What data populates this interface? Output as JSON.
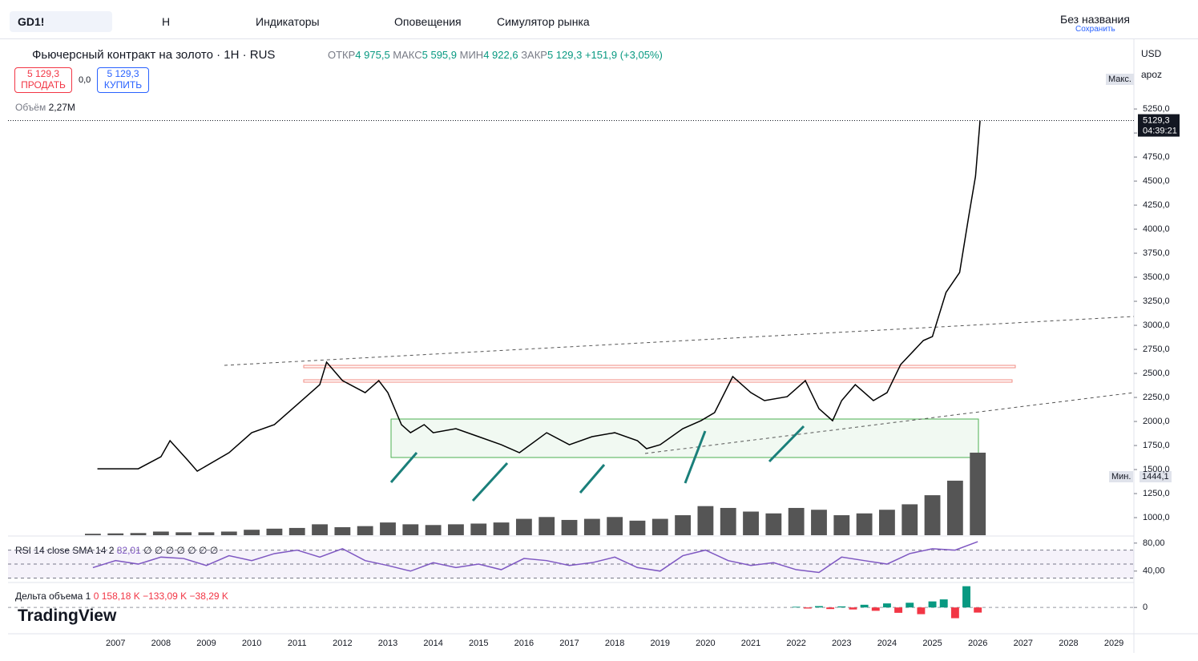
{
  "toolbar": {
    "symbol": "GD1!",
    "interval": "H",
    "indicators": "Индикаторы",
    "alerts": "Оповещения",
    "replay": "Симулятор рынка",
    "layout_name": "Без названия",
    "save_status": "Сохранить"
  },
  "legend": {
    "title": "Фьючерсный контракт на золото · 1H · RUS",
    "open_label": "ОТКР",
    "open": "4 975,5",
    "high_label": "МАКС",
    "high": "5 595,9",
    "low_label": "МИН",
    "low": "4 922,6",
    "close_label": "ЗАКР",
    "close": "5 129,3",
    "change": "+151,9 (+3,05%)",
    "sell_price": "5 129,3",
    "sell": "ПРОДАТЬ",
    "spread": "0,0",
    "buy_price": "5 129,3",
    "buy": "КУПИТЬ",
    "volume_label": "Объём",
    "volume": "2,27M"
  },
  "price_scale": {
    "currency": "USD",
    "unit": "apoz",
    "max_label": "Макс.",
    "min_label": "Мин.",
    "min_value": "1444,1",
    "countdown": "04:39:21"
  },
  "indicators": {
    "rsi_title": "RSI 14 close SMA 14 2",
    "rsi_value": "82,01",
    "rsi_na": "∅ ∅ ∅ ∅ ∅ ∅ ∅",
    "delta_title": "Дельта объема 1",
    "delta_values": [
      "0",
      "158,18 K",
      "−133,09 K",
      "−38,29 K"
    ]
  },
  "branding": "TradingView",
  "chart_data": [
    {
      "type": "line",
      "color": "#000000",
      "x": [
        2006.6,
        2007.5,
        2008.0,
        2008.2,
        2008.6,
        2008.8,
        2009.5,
        2010.0,
        2010.5,
        2011.0,
        2011.5,
        2011.65,
        2012.0,
        2012.5,
        2012.8,
        2013.0,
        2013.3,
        2013.5,
        2013.8,
        2014.0,
        2014.5,
        2015.0,
        2015.5,
        2015.9,
        2016.5,
        2017.0,
        2017.5,
        2018.0,
        2018.5,
        2018.7,
        2019.0,
        2019.5,
        2019.9,
        2020.2,
        2020.6,
        2021.0,
        2021.3,
        2021.8,
        2022.2,
        2022.5,
        2022.8,
        2023.0,
        2023.3,
        2023.7,
        2024.0,
        2024.3,
        2024.8,
        2025.0,
        2025.3,
        2025.6,
        2025.8,
        2025.95,
        2026.05
      ],
      "values": [
        1508,
        1508,
        1633,
        1800,
        1592,
        1483,
        1675,
        1883,
        1967,
        2175,
        2383,
        2617,
        2425,
        2300,
        2425,
        2300,
        1967,
        1883,
        1967,
        1883,
        1925,
        1842,
        1758,
        1675,
        1883,
        1758,
        1842,
        1883,
        1800,
        1717,
        1758,
        1925,
        2008,
        2092,
        2467,
        2300,
        2217,
        2258,
        2425,
        2133,
        2008,
        2217,
        2383,
        2217,
        2300,
        2592,
        2842,
        2883,
        3342,
        3550,
        4133,
        4550,
        5129.3
      ],
      "last_price": {
        "value": 5129.3,
        "label": "5129,3"
      },
      "xlim": [
        2004.63,
        2029.44
      ],
      "xticks": [
        2007,
        2008,
        2009,
        2010,
        2011,
        2012,
        2013,
        2014,
        2015,
        2016,
        2017,
        2018,
        2019,
        2020,
        2021,
        2022,
        2023,
        2024,
        2025,
        2026,
        2027,
        2028,
        2029
      ],
      "ylim": [
        817,
        5967
      ],
      "yticks": [
        {
          "value": 1000,
          "label": "1000,0"
        },
        {
          "value": 1250,
          "label": "1250,0"
        },
        {
          "value": 1500,
          "label": "1500,0"
        },
        {
          "value": 1750,
          "label": "1750,0"
        },
        {
          "value": 2000,
          "label": "2000,0"
        },
        {
          "value": 2250,
          "label": "2250,0"
        },
        {
          "value": 2500,
          "label": "2500,0"
        },
        {
          "value": 2750,
          "label": "2750,0"
        },
        {
          "value": 3000,
          "label": "3000,0"
        },
        {
          "value": 3250,
          "label": "3250,0"
        },
        {
          "value": 3500,
          "label": "3500,0"
        },
        {
          "value": 3750,
          "label": "3750,0"
        },
        {
          "value": 4000,
          "label": "4000,0"
        },
        {
          "value": 4250,
          "label": "4250,0"
        },
        {
          "value": 4500,
          "label": "4500,0"
        },
        {
          "value": 4750,
          "label": "4750,0"
        },
        {
          "value": 5000,
          "label": "5000,0"
        },
        {
          "value": 5250,
          "label": "5250,0"
        }
      ]
    },
    {
      "type": "bar",
      "color": "#555555",
      "x": [
        2006.5,
        2007.0,
        2007.5,
        2008.0,
        2008.5,
        2009.0,
        2009.5,
        2010.0,
        2010.5,
        2011.0,
        2011.5,
        2012.0,
        2012.5,
        2013.0,
        2013.5,
        2014.0,
        2014.5,
        2015.0,
        2015.5,
        2016.0,
        2016.5,
        2017.0,
        2017.5,
        2018.0,
        2018.5,
        2019.0,
        2019.5,
        2020.0,
        2020.5,
        2021.0,
        2021.5,
        2022.0,
        2022.5,
        2023.0,
        2023.5,
        2024.0,
        2024.5,
        2025.0,
        2025.5,
        2026.0
      ],
      "values": [
        0.04,
        0.05,
        0.06,
        0.1,
        0.08,
        0.08,
        0.1,
        0.15,
        0.18,
        0.2,
        0.3,
        0.22,
        0.25,
        0.35,
        0.3,
        0.28,
        0.3,
        0.32,
        0.35,
        0.45,
        0.5,
        0.42,
        0.45,
        0.5,
        0.4,
        0.45,
        0.55,
        0.8,
        0.75,
        0.65,
        0.6,
        0.75,
        0.7,
        0.55,
        0.6,
        0.7,
        0.85,
        1.1,
        1.5,
        2.27
      ],
      "xlim": [
        2004.63,
        2029.44
      ],
      "ylim": [
        0,
        2.6
      ]
    },
    {
      "type": "line",
      "color": "#7e57c2",
      "x": [
        2006.5,
        2007.0,
        2007.5,
        2008.0,
        2008.5,
        2009.0,
        2009.5,
        2010.0,
        2010.5,
        2011.0,
        2011.5,
        2012.0,
        2012.5,
        2013.0,
        2013.5,
        2014.0,
        2014.5,
        2015.0,
        2015.5,
        2016.0,
        2016.5,
        2017.0,
        2017.5,
        2018.0,
        2018.5,
        2019.0,
        2019.5,
        2020.0,
        2020.5,
        2021.0,
        2021.5,
        2022.0,
        2022.5,
        2023.0,
        2023.5,
        2024.0,
        2024.5,
        2025.0,
        2025.5,
        2026.0
      ],
      "values": [
        45,
        55,
        50,
        60,
        58,
        48,
        62,
        55,
        65,
        70,
        60,
        72,
        55,
        48,
        40,
        52,
        45,
        50,
        42,
        58,
        55,
        48,
        52,
        60,
        45,
        40,
        62,
        70,
        55,
        48,
        52,
        42,
        38,
        60,
        55,
        50,
        65,
        72,
        70,
        82.01
      ],
      "levels": [
        30,
        50,
        70
      ],
      "xlim": [
        2004.63,
        2029.44
      ],
      "ylim": [
        26,
        89
      ],
      "yticks": [
        {
          "value": 80,
          "label": "80,00"
        },
        {
          "value": 40,
          "label": "40,00"
        }
      ]
    },
    {
      "type": "bar",
      "color": "#089981",
      "negative_color": "#f23645",
      "x": [
        2022.0,
        2022.25,
        2022.5,
        2022.75,
        2023.0,
        2023.25,
        2023.5,
        2023.75,
        2024.0,
        2024.25,
        2024.5,
        2024.75,
        2025.0,
        2025.25,
        2025.5,
        2025.75,
        2026.0
      ],
      "values": [
        5,
        -8,
        10,
        -12,
        8,
        -15,
        20,
        -25,
        30,
        -40,
        35,
        -50,
        45,
        60,
        -80,
        158.18,
        -38.29
      ],
      "xlim": [
        2004.63,
        2029.44
      ],
      "ylim": [
        -190,
        180
      ],
      "yticks": [
        0
      ]
    }
  ]
}
